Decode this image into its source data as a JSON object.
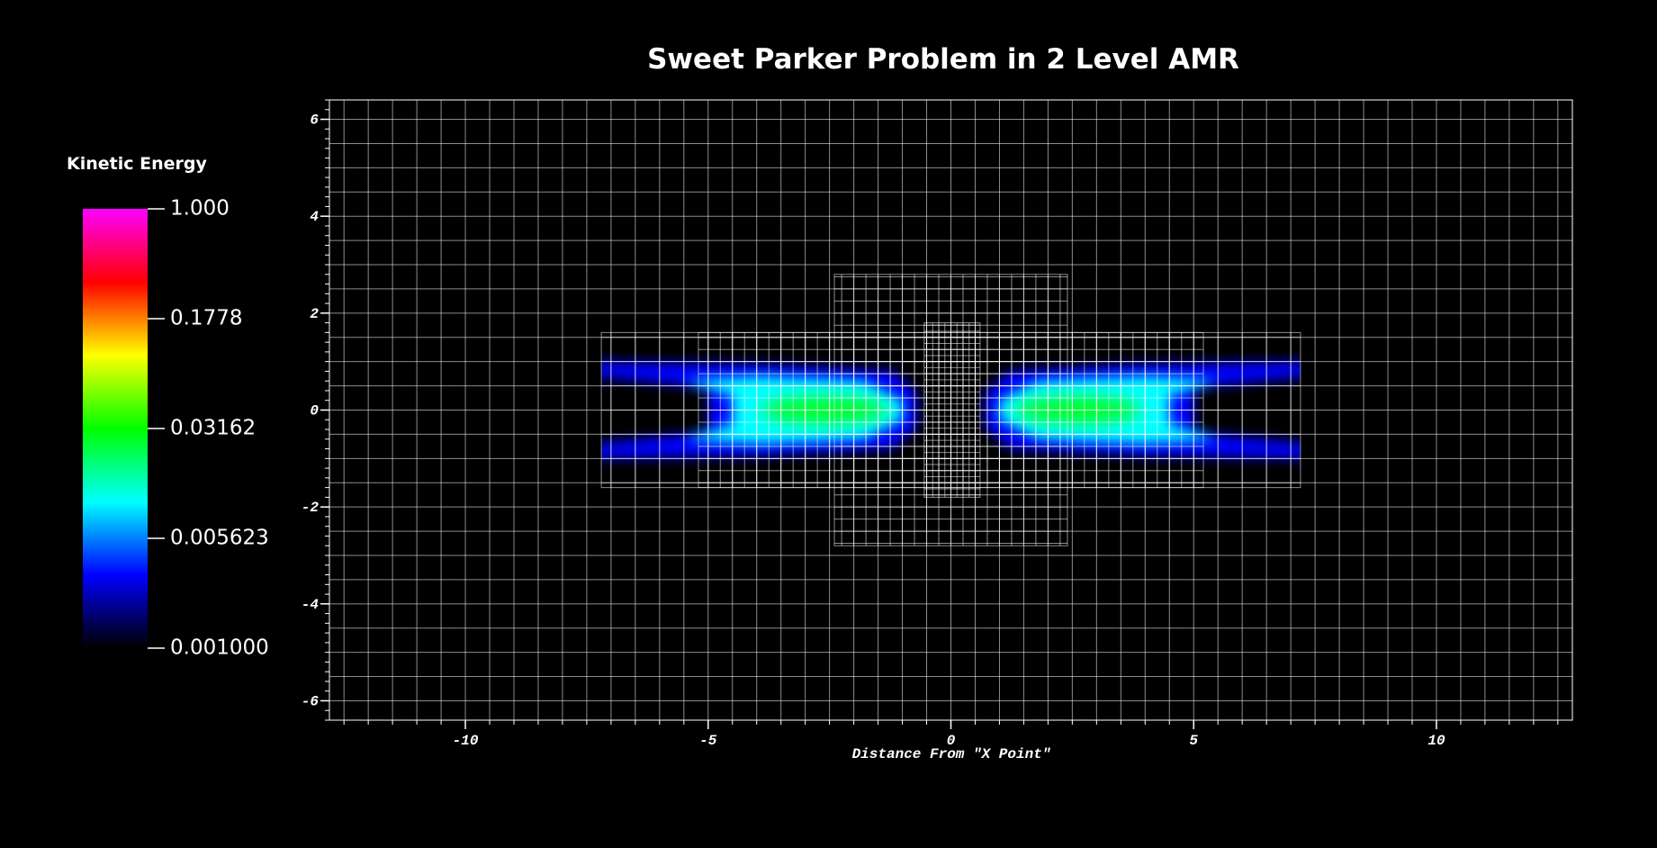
{
  "chart_data": {
    "type": "pseudocolor",
    "title": "Sweet Parker Problem in 2 Level AMR",
    "xlabel": "Distance From \"X Point\"",
    "xlim": [
      -12.8,
      12.8
    ],
    "xticks": [
      -10,
      -5,
      0,
      5,
      10
    ],
    "ylim": [
      -6.4,
      6.4
    ],
    "yticks": [
      -6,
      -4,
      -2,
      0,
      2,
      4,
      6
    ],
    "colorbar": {
      "label": "Kinetic Energy",
      "lim": [
        0.001,
        1
      ],
      "log": true,
      "ticks": [
        {
          "value": 1,
          "label": "1.000"
        },
        0.1778,
        0.03162,
        0.005623,
        {
          "value": 0.001,
          "label": "0.001000"
        }
      ],
      "colormap": [
        "#000000",
        "#0000ff",
        "#00ffff",
        "#00ff00",
        "#ffff00",
        "#ff0000",
        "#ff00ff"
      ]
    }
  }
}
